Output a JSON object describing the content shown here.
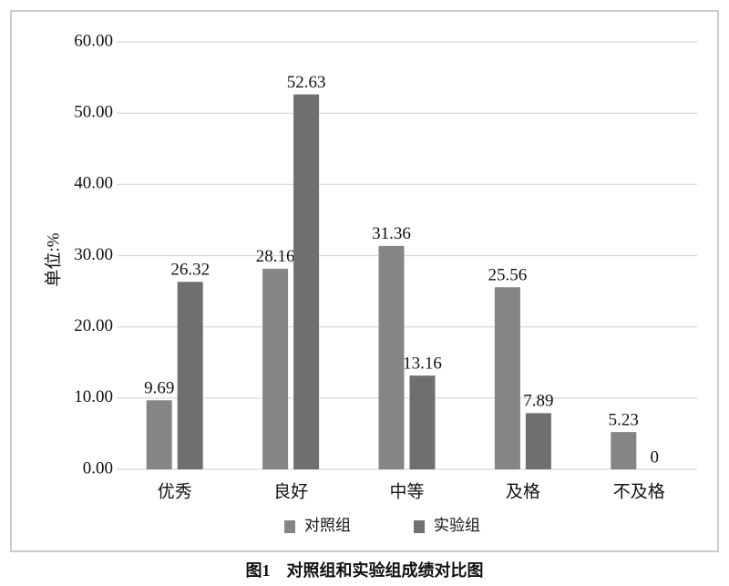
{
  "chart_data": {
    "type": "bar",
    "title": "图1　对照组和实验组成绩对比图",
    "ylabel": "单位:%",
    "categories": [
      "优秀",
      "良好",
      "中等",
      "及格",
      "不及格"
    ],
    "series": [
      {
        "name": "对照组",
        "color": "#858585",
        "values": [
          9.69,
          28.16,
          31.36,
          25.56,
          5.23
        ]
      },
      {
        "name": "实验组",
        "color": "#6f6f6f",
        "values": [
          26.32,
          52.63,
          13.16,
          7.89,
          0
        ]
      }
    ],
    "ylim": [
      0,
      60
    ],
    "yticks": [
      {
        "value": 0,
        "label": "0.00"
      },
      {
        "value": 10,
        "label": "10.00"
      },
      {
        "value": 20,
        "label": "20.00"
      },
      {
        "value": 30,
        "label": "30.00"
      },
      {
        "value": 40,
        "label": "40.00"
      },
      {
        "value": 50,
        "label": "50.00"
      },
      {
        "value": 60,
        "label": "60.00"
      }
    ],
    "grid": true,
    "legend": "bottom"
  }
}
